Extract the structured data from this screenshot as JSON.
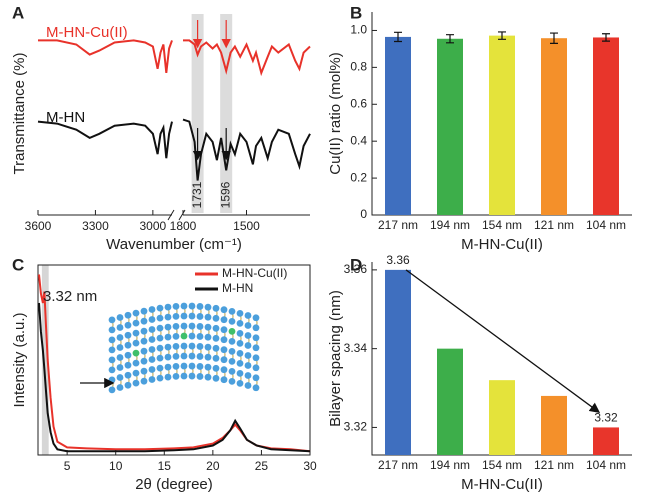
{
  "chart_data": [
    {
      "panel_label": "A",
      "type": "line",
      "x_label": "Wavenumber (cm⁻¹)",
      "y_label": "Transmittance (%)",
      "x_segments": [
        {
          "xlim": [
            3600,
            2900
          ],
          "xticks": [
            3600,
            3300,
            3000
          ]
        },
        {
          "xlim": [
            1800,
            1200
          ],
          "xticks": [
            1800,
            1500
          ]
        }
      ],
      "ylim": [
        0,
        1
      ],
      "x": [
        3600,
        3500,
        3400,
        3330,
        3280,
        3200,
        3100,
        3040,
        3000,
        2975,
        2960,
        2945,
        2930,
        2915,
        2900,
        1800,
        1770,
        1745,
        1731,
        1715,
        1690,
        1660,
        1640,
        1620,
        1596,
        1575,
        1555,
        1530,
        1500,
        1470,
        1455,
        1430,
        1400,
        1380,
        1350,
        1300,
        1270,
        1250,
        1230,
        1200
      ],
      "series": [
        {
          "name": "M-HN-Cu(II)",
          "color": "#e8322a",
          "values": [
            0.86,
            0.86,
            0.84,
            0.79,
            0.81,
            0.85,
            0.86,
            0.85,
            0.83,
            0.72,
            0.8,
            0.84,
            0.7,
            0.82,
            0.86,
            0.86,
            0.86,
            0.84,
            0.79,
            0.83,
            0.85,
            0.82,
            0.84,
            0.8,
            0.71,
            0.8,
            0.83,
            0.78,
            0.84,
            0.76,
            0.8,
            0.7,
            0.78,
            0.83,
            0.8,
            0.84,
            0.76,
            0.72,
            0.8,
            0.83
          ]
        },
        {
          "name": "M-HN",
          "color": "#111111",
          "values": [
            0.46,
            0.45,
            0.42,
            0.38,
            0.4,
            0.44,
            0.45,
            0.44,
            0.4,
            0.3,
            0.4,
            0.43,
            0.28,
            0.4,
            0.46,
            0.47,
            0.46,
            0.36,
            0.17,
            0.3,
            0.4,
            0.36,
            0.27,
            0.38,
            0.22,
            0.35,
            0.3,
            0.4,
            0.36,
            0.25,
            0.34,
            0.38,
            0.28,
            0.36,
            0.42,
            0.4,
            0.3,
            0.24,
            0.34,
            0.4
          ]
        }
      ],
      "annotations": [
        {
          "text": "1731",
          "x": 1731
        },
        {
          "text": "1596",
          "x": 1596
        }
      ]
    },
    {
      "panel_label": "B",
      "type": "bar",
      "y_label": "Cu(II) ratio (mol%)",
      "x_label": "M-HN-Cu(II)",
      "categories": [
        "217 nm",
        "194 nm",
        "154 nm",
        "121 nm",
        "104 nm"
      ],
      "values": [
        0.965,
        0.955,
        0.972,
        0.958,
        0.962
      ],
      "errors": [
        0.025,
        0.022,
        0.02,
        0.028,
        0.02
      ],
      "colors": [
        "#3f6fbf",
        "#3dae4a",
        "#e4e33b",
        "#f4902a",
        "#e8352b"
      ],
      "ylim": [
        0,
        1.1
      ],
      "yticks": [
        0,
        0.2,
        0.4,
        0.6,
        0.8,
        {
          "value": 1,
          "label": "1.0"
        }
      ]
    },
    {
      "panel_label": "C",
      "type": "line",
      "x_label": "2θ (degree)",
      "y_label": "Intensity (a.u.)",
      "annotation": "3.32 nm",
      "xlim": [
        2,
        30
      ],
      "xticks": [
        5,
        10,
        15,
        20,
        25,
        30
      ],
      "ylim": [
        0,
        1
      ],
      "legend": "upper right",
      "x": [
        2.1,
        2.3,
        2.5,
        2.66,
        2.8,
        3.0,
        3.3,
        3.6,
        4,
        5,
        7,
        10,
        13,
        16,
        18,
        20,
        21,
        21.8,
        22.3,
        22.8,
        23.5,
        24.5,
        26,
        28,
        30
      ],
      "series": [
        {
          "name": "M-HN-Cu(II)",
          "color": "#e8322a",
          "values": [
            0.95,
            0.85,
            0.8,
            0.86,
            0.7,
            0.5,
            0.3,
            0.15,
            0.07,
            0.04,
            0.035,
            0.03,
            0.03,
            0.035,
            0.04,
            0.06,
            0.09,
            0.13,
            0.16,
            0.13,
            0.08,
            0.05,
            0.035,
            0.03,
            0.02
          ]
        },
        {
          "name": "M-HN",
          "color": "#111111",
          "values": [
            0.8,
            0.65,
            0.55,
            0.45,
            0.35,
            0.22,
            0.12,
            0.06,
            0.03,
            0.02,
            0.02,
            0.02,
            0.02,
            0.025,
            0.03,
            0.05,
            0.08,
            0.13,
            0.18,
            0.14,
            0.08,
            0.05,
            0.03,
            0.025,
            0.02
          ]
        }
      ]
    },
    {
      "panel_label": "D",
      "type": "bar",
      "y_label": "Bilayer spacing (nm)",
      "x_label": "M-HN-Cu(II)",
      "categories": [
        "217 nm",
        "194 nm",
        "154 nm",
        "121 nm",
        "104 nm"
      ],
      "values": [
        3.36,
        3.34,
        3.332,
        3.328,
        3.32
      ],
      "value_labels": [
        "3.36",
        null,
        null,
        null,
        "3.32"
      ],
      "colors": [
        "#3f6fbf",
        "#3dae4a",
        "#e4e33b",
        "#f4902a",
        "#e8352b"
      ],
      "ylim": [
        3.313,
        3.362
      ],
      "yticks": [
        3.32,
        3.34,
        3.36
      ]
    }
  ]
}
